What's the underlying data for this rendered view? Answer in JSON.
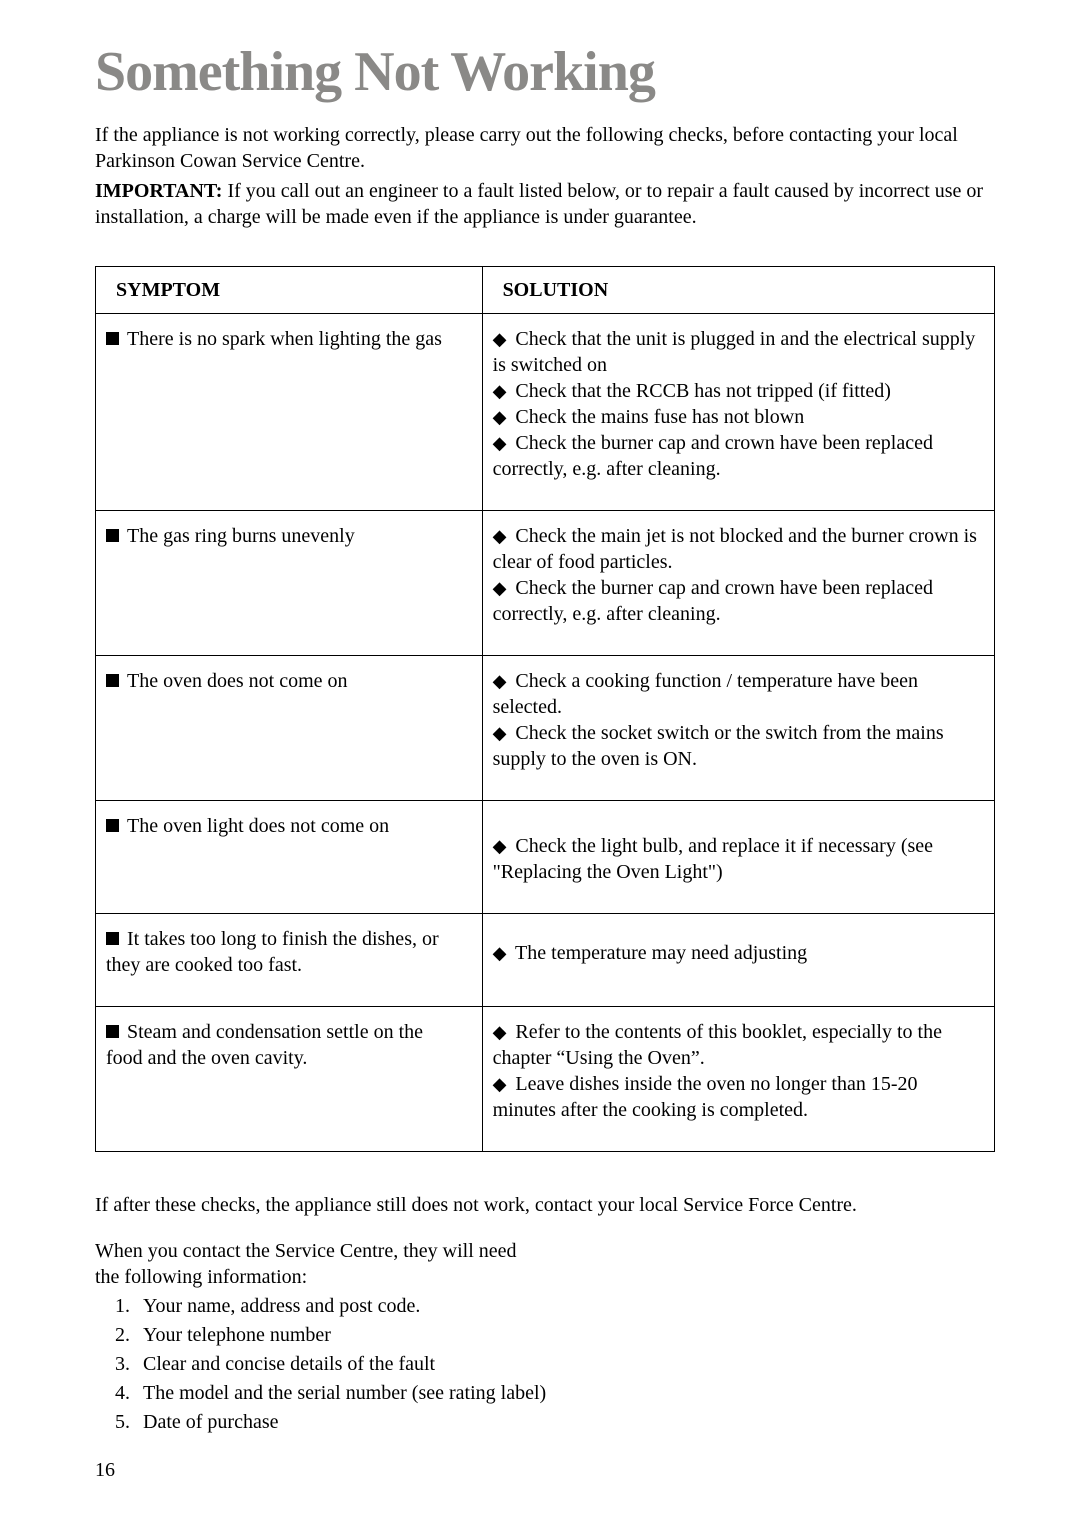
{
  "title": "Something Not Working",
  "intro": "If the appliance is not working correctly, please carry out the following checks, before contacting your local Parkinson Cowan Service Centre.",
  "important_label": "IMPORTANT:",
  "important_text": " If you call out an engineer to a fault listed below, or to repair a fault caused by incorrect use or installation, a charge will be made even if the appliance is under guarantee.",
  "headers": {
    "symptom": "SYMPTOM",
    "solution": "SOLUTION"
  },
  "rows": [
    {
      "symptom": "There is no spark when lighting the gas",
      "solutions": [
        "Check that the unit is plugged in and the electrical supply is switched on",
        "Check that the RCCB has not tripped (if fitted)",
        "Check the mains fuse has not blown",
        "Check the burner cap and crown have been replaced correctly, e.g. after cleaning."
      ]
    },
    {
      "symptom": "The gas ring burns unevenly",
      "solutions": [
        "Check the main jet is not blocked and the burner crown is clear of food particles.",
        "Check the burner cap and crown have been replaced correctly, e.g. after cleaning."
      ]
    },
    {
      "symptom": "The oven does not come on",
      "solutions": [
        "Check a cooking function / temperature have been selected.",
        "Check the socket switch or the switch from the mains supply to the oven is ON."
      ]
    },
    {
      "symptom": "The oven light does not come on",
      "solutions": [
        "Check the light bulb, and replace it if necessary (see \"Replacing the Oven Light\")"
      ]
    },
    {
      "symptom": "It takes too long to finish the dishes, or they are cooked too fast.",
      "solutions": [
        "The temperature may need adjusting"
      ]
    },
    {
      "symptom": "Steam and condensation settle on the food and the oven cavity.",
      "solutions": [
        "Refer to the contents of this booklet, especially to the chapter “Using the Oven”.",
        "Leave dishes inside the oven no longer than 15-20 minutes after the cooking is completed."
      ]
    }
  ],
  "after": "If after these checks, the appliance still does not work, contact your local Service Force Centre.",
  "contact_lead": "When you contact the Service Centre, they will need the following information:",
  "info_list": [
    "Your name, address and post code.",
    "Your telephone number",
    "Clear and concise details of the fault",
    "The model and the serial number (see rating label)",
    "Date of purchase"
  ],
  "page_number": "16",
  "colors": {
    "title": "#8a8987",
    "text": "#000000",
    "border": "#000000",
    "background": "#ffffff"
  },
  "fontsize": {
    "title": 56,
    "body": 20
  }
}
